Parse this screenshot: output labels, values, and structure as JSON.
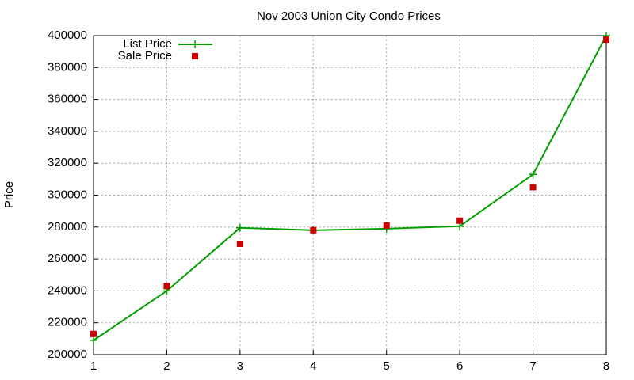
{
  "chart_data": {
    "type": "line",
    "title": "Nov 2003 Union City Condo Prices",
    "y_label": "Price",
    "x": [
      1,
      2,
      3,
      4,
      5,
      6,
      7,
      8
    ],
    "series": [
      {
        "name": "List Price",
        "color": "#00a000",
        "style": "linespoints",
        "values": [
          209000,
          240000,
          279500,
          278000,
          279000,
          280500,
          313000,
          400000
        ]
      },
      {
        "name": "Sale Price",
        "color": "#cc0000",
        "style": "points",
        "values": [
          213000,
          243000,
          269500,
          278000,
          281000,
          284000,
          305000,
          397500
        ]
      }
    ],
    "xlim": [
      1,
      8
    ],
    "xticks": [
      1,
      2,
      3,
      4,
      5,
      6,
      7,
      8
    ],
    "ylim": [
      200000,
      400000
    ],
    "yticks": [
      200000,
      220000,
      240000,
      260000,
      280000,
      300000,
      320000,
      340000,
      360000,
      380000,
      400000
    ],
    "grid": true,
    "legend": "top-left"
  }
}
